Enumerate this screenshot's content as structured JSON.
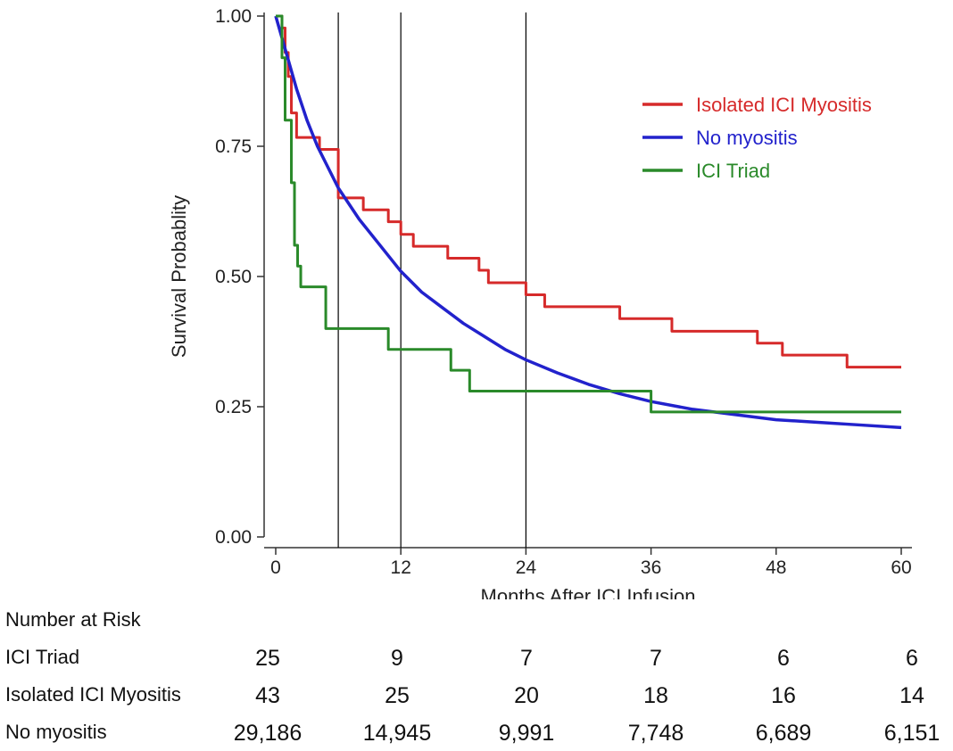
{
  "chart_data": {
    "type": "line",
    "title": "",
    "xlabel": "Months After ICI Infusion",
    "ylabel": "Survival Probablity",
    "xlim": [
      0,
      60
    ],
    "ylim": [
      0,
      1
    ],
    "xticks": [
      0,
      12,
      24,
      36,
      48,
      60
    ],
    "xtick_labels": [
      "0",
      "12",
      "24",
      "36",
      "48",
      "60"
    ],
    "yticks": [
      0,
      0.25,
      0.5,
      0.75,
      1.0
    ],
    "ytick_labels": [
      "0.00",
      "0.25",
      "0.50",
      "0.75",
      "1.00"
    ],
    "vertical_reference_lines": [
      6,
      12,
      24
    ],
    "legend_position": "top-right",
    "series": [
      {
        "name": "Isolated ICI Myositis",
        "color": "#d62a2a",
        "step": true,
        "x": [
          0,
          0.6,
          0.9,
          1.2,
          1.5,
          2.0,
          4.2,
          6.0,
          8.4,
          10.8,
          12.0,
          13.2,
          16.5,
          19.5,
          20.4,
          24.0,
          25.8,
          30.0,
          33.0,
          38.0,
          46.2,
          48.6,
          54.8,
          60.0
        ],
        "y": [
          1.0,
          0.977,
          0.93,
          0.884,
          0.814,
          0.767,
          0.744,
          0.651,
          0.628,
          0.605,
          0.581,
          0.558,
          0.535,
          0.512,
          0.488,
          0.465,
          0.442,
          0.442,
          0.419,
          0.395,
          0.372,
          0.349,
          0.326,
          0.326
        ]
      },
      {
        "name": "No myositis",
        "color": "#2222cc",
        "step": false,
        "x": [
          0,
          1,
          2,
          3,
          4,
          5,
          6,
          8,
          10,
          12,
          14,
          16,
          18,
          20,
          22,
          24,
          27,
          30,
          33,
          36,
          40,
          44,
          48,
          52,
          56,
          60
        ],
        "y": [
          1.0,
          0.93,
          0.86,
          0.8,
          0.75,
          0.71,
          0.67,
          0.61,
          0.56,
          0.51,
          0.47,
          0.44,
          0.41,
          0.385,
          0.36,
          0.34,
          0.315,
          0.293,
          0.275,
          0.26,
          0.245,
          0.235,
          0.225,
          0.22,
          0.215,
          0.21
        ]
      },
      {
        "name": "ICI Triad",
        "color": "#2a8a2a",
        "step": true,
        "x": [
          0,
          0.6,
          0.9,
          1.5,
          1.8,
          2.1,
          2.4,
          4.8,
          10.8,
          16.8,
          18.6,
          36.0,
          60.0
        ],
        "y": [
          1.0,
          0.92,
          0.8,
          0.68,
          0.56,
          0.52,
          0.48,
          0.4,
          0.36,
          0.32,
          0.28,
          0.24,
          0.24
        ]
      }
    ]
  },
  "risk_table": {
    "title": "Number at Risk",
    "time_points": [
      0,
      12,
      24,
      36,
      48,
      60
    ],
    "rows": [
      {
        "label": "ICI Triad",
        "values": [
          "25",
          "9",
          "7",
          "7",
          "6",
          "6"
        ]
      },
      {
        "label": "Isolated ICI Myositis",
        "values": [
          "43",
          "25",
          "20",
          "18",
          "16",
          "14"
        ]
      },
      {
        "label": "No myositis",
        "values": [
          "29,186",
          "14,945",
          "9,991",
          "7,748",
          "6,689",
          "6,151"
        ]
      }
    ]
  }
}
